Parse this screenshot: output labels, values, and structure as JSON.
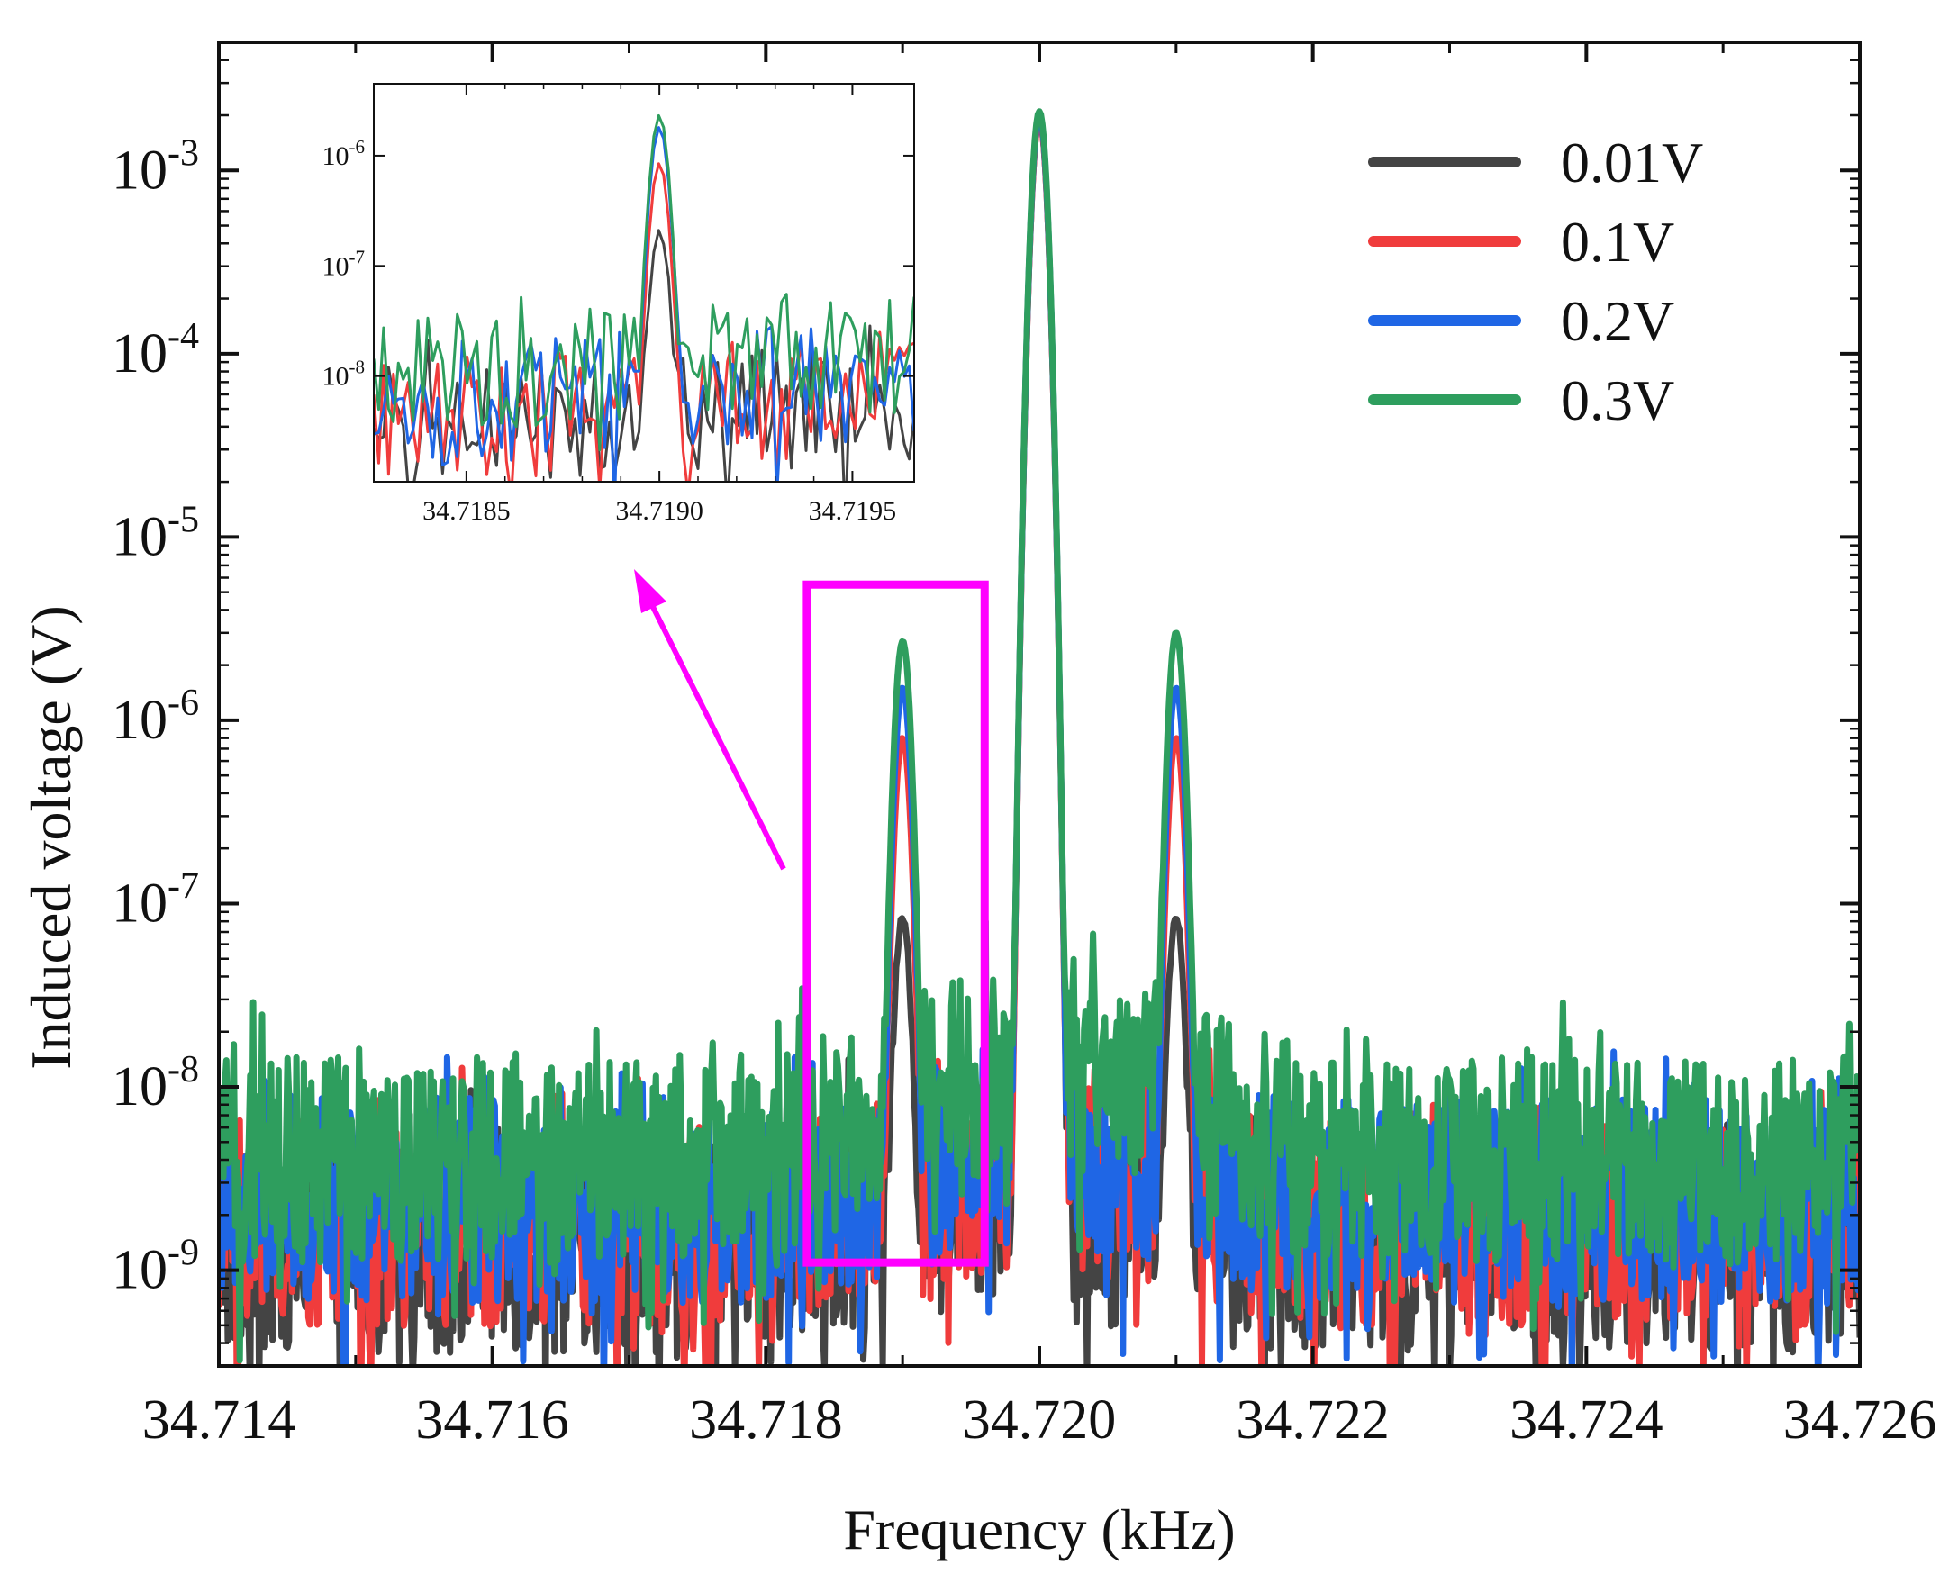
{
  "chart_data": {
    "type": "line",
    "title": "",
    "xlabel": "Frequency (kHz)",
    "ylabel": "Induced voltage (V)",
    "xlim": [
      34.714,
      34.726
    ],
    "ylim": [
      3e-10,
      0.005
    ],
    "yscale": "log",
    "x_ticks": [
      "34.714",
      "34.716",
      "34.718",
      "34.720",
      "34.722",
      "34.724",
      "34.726"
    ],
    "y_ticks": [
      {
        "base": "10",
        "exp": "-9"
      },
      {
        "base": "10",
        "exp": "-8"
      },
      {
        "base": "10",
        "exp": "-7"
      },
      {
        "base": "10",
        "exp": "-6"
      },
      {
        "base": "10",
        "exp": "-5"
      },
      {
        "base": "10",
        "exp": "-4"
      },
      {
        "base": "10",
        "exp": "-3"
      }
    ],
    "legend_position": "top-right",
    "series": [
      {
        "name": "0.01V",
        "color": "#444444",
        "noise_floor": 1.3e-09,
        "peaks": [
          {
            "x": 34.719,
            "y": 8e-08
          },
          {
            "x": 34.72,
            "y": 0.0019
          },
          {
            "x": 34.721,
            "y": 8e-08
          }
        ]
      },
      {
        "name": "0.1V",
        "color": "#f03c3c",
        "noise_floor": 1.8e-09,
        "peaks": [
          {
            "x": 34.719,
            "y": 8e-07
          },
          {
            "x": 34.72,
            "y": 0.0019
          },
          {
            "x": 34.721,
            "y": 8e-07
          }
        ]
      },
      {
        "name": "0.2V",
        "color": "#1f66e5",
        "noise_floor": 2.4e-09,
        "peaks": [
          {
            "x": 34.719,
            "y": 1.5e-06
          },
          {
            "x": 34.72,
            "y": 0.002
          },
          {
            "x": 34.721,
            "y": 1.5e-06
          }
        ]
      },
      {
        "name": "0.3V",
        "color": "#2e9e5e",
        "noise_floor": 4e-09,
        "peaks": [
          {
            "x": 34.719,
            "y": 2.7e-06
          },
          {
            "x": 34.72,
            "y": 0.0021
          },
          {
            "x": 34.721,
            "y": 3e-06
          }
        ]
      }
    ],
    "highlight_box": {
      "x_range": [
        34.7183,
        34.7196
      ],
      "y_range": [
        1.1e-09,
        5.5e-06
      ],
      "color": "#ff00ff"
    },
    "inset": {
      "xlim": [
        34.71826,
        34.71966
      ],
      "ylim": [
        1.1e-09,
        4.5e-06
      ],
      "x_ticks": [
        "34.7185",
        "34.7190",
        "34.7195"
      ],
      "y_ticks": [
        {
          "base": "10",
          "exp": "-8"
        },
        {
          "base": "10",
          "exp": "-7"
        },
        {
          "base": "10",
          "exp": "-6"
        }
      ],
      "peak_x": 34.719,
      "peaks": {
        "0.01V": 2e-07,
        "0.1V": 8.5e-07,
        "0.2V": 1.8e-06,
        "0.3V": 2.3e-06
      },
      "noise_floors": {
        "0.01V": 3e-09,
        "0.1V": 3.5e-09,
        "0.2V": 5e-09,
        "0.3V": 9e-09
      }
    }
  }
}
